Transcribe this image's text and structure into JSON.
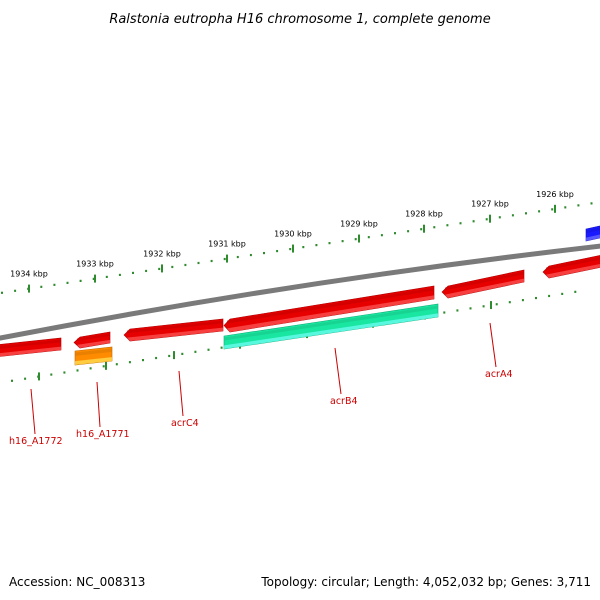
{
  "title": "Ralstonia eutropha H16 chromosome 1, complete genome",
  "footer": {
    "accession": "Accession: NC_008313",
    "summary": "Topology: circular; Length: 4,052,032 bp; Genes: 3,711"
  },
  "colors": {
    "backbone": "#7a7a7a",
    "ticks": "#2e8b2e",
    "gene_forward": "#e60000",
    "gene_reverse": "#e60000",
    "gene_highlight": "#19e6a0",
    "gene_orange": "#ff8c00",
    "gene_blue": "#1a1aff",
    "label": "#cc0000"
  },
  "ruler": {
    "unit": "kbp",
    "labels": [
      "1926 kbp",
      "1927 kbp",
      "1928 kbp",
      "1929 kbp",
      "1930 kbp",
      "1931 kbp",
      "1932 kbp",
      "1933 kbp",
      "1934 kbp"
    ]
  },
  "genes": [
    {
      "name": "h16_A1772",
      "strand": "reverse",
      "color": "gene_reverse"
    },
    {
      "name": "h16_A1771",
      "strand": "reverse",
      "color": "gene_reverse"
    },
    {
      "name": "",
      "strand": "reverse",
      "color": "gene_orange"
    },
    {
      "name": "acrC4",
      "strand": "reverse",
      "color": "gene_reverse"
    },
    {
      "name": "",
      "strand": "reverse",
      "color": "gene_reverse"
    },
    {
      "name": "acrB4",
      "strand": "reverse",
      "color": "gene_highlight"
    },
    {
      "name": "acrA4",
      "strand": "reverse",
      "color": "gene_reverse"
    },
    {
      "name": "",
      "strand": "reverse",
      "color": "gene_reverse"
    },
    {
      "name": "",
      "strand": "forward",
      "color": "gene_blue"
    }
  ]
}
